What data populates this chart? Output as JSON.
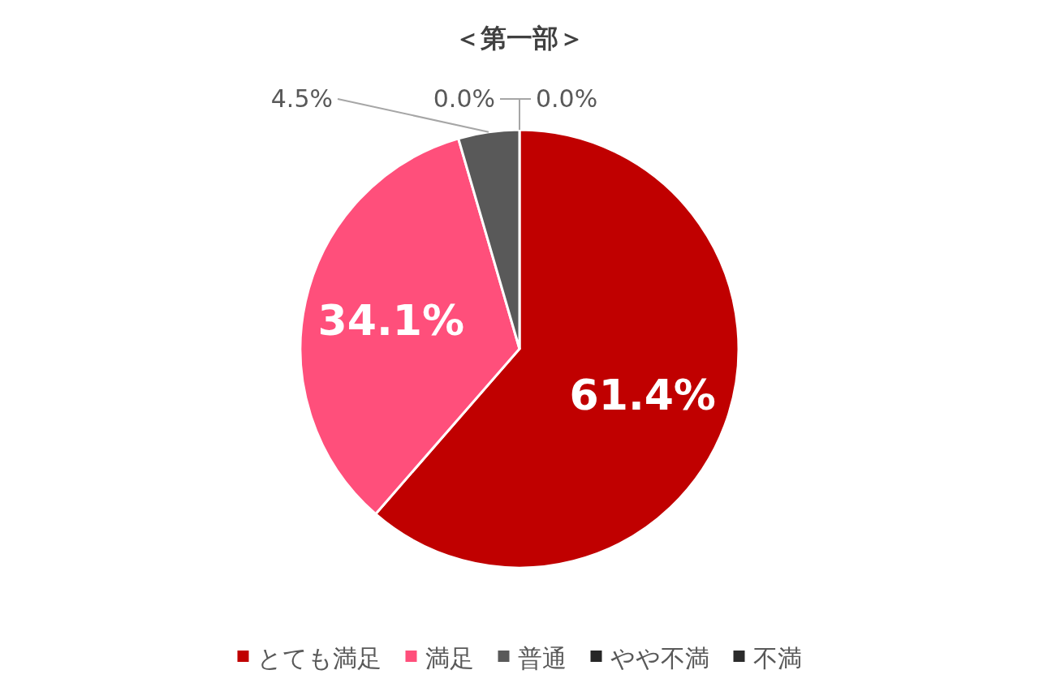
{
  "chart_data": {
    "type": "pie",
    "title": "＜第一部＞",
    "categories": [
      "とても満足",
      "満足",
      "普通",
      "やや不満",
      "不満"
    ],
    "values": [
      61.4,
      34.1,
      4.5,
      0.0,
      0.0
    ],
    "value_labels": [
      "61.4%",
      "34.1%",
      "4.5%",
      "0.0%",
      "0.0%"
    ],
    "colors": [
      "#c00000",
      "#ff4f7b",
      "#595959",
      "#262626",
      "#2b2b2b"
    ],
    "legend": "bottom"
  }
}
